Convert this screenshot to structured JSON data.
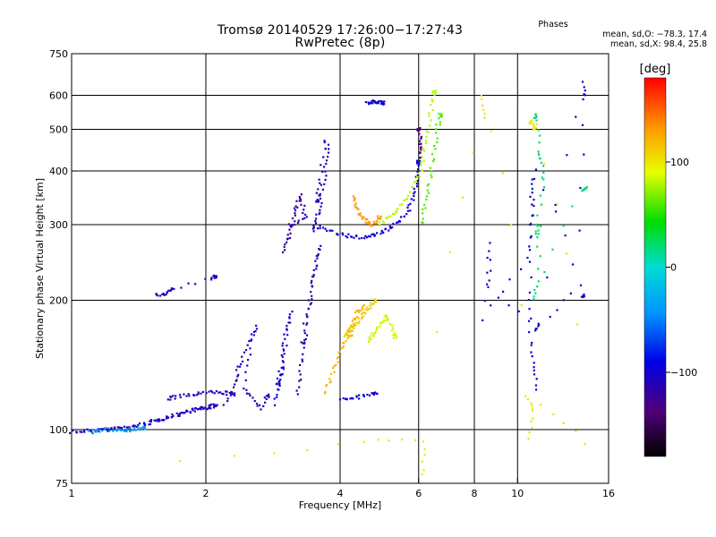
{
  "header": {
    "title": "Tromsø 20140529 17:26:00−17:27:43",
    "subtitle": "RwPretec (8p)"
  },
  "stats": {
    "heading": "Phases",
    "o_line": "mean, sd,O: −78.3, 17.4",
    "x_line": "mean, sd,X:  98.4, 25.8"
  },
  "chart_data": {
    "type": "scatter",
    "title": "Tromsø 20140529 17:26:00−17:27:43",
    "subtitle": "RwPretec (8p)",
    "xlabel": "Frequency [MHz]",
    "ylabel": "Stationary phase Virtual Height [km]",
    "x_scale": "log",
    "y_scale": "log",
    "xlim": [
      1,
      16
    ],
    "ylim": [
      75,
      750
    ],
    "x_ticks": [
      1,
      2,
      4,
      6,
      8,
      10,
      16
    ],
    "x_tick_labels": [
      "1",
      "2",
      "4",
      "6",
      "8",
      "10",
      "16"
    ],
    "x_grid": [
      2,
      4,
      6,
      8,
      10
    ],
    "y_ticks": [
      75,
      100,
      200,
      300,
      400,
      500,
      600,
      750
    ],
    "y_tick_labels": [
      "75",
      "100",
      "200",
      "300",
      "400",
      "500",
      "600",
      "750"
    ],
    "y_grid": [
      100,
      200,
      300,
      400,
      500,
      600
    ],
    "grid": true,
    "colorbar": {
      "label": "[deg]",
      "range": [
        -180,
        180
      ],
      "ticks": [
        100,
        0,
        -100
      ],
      "tick_labels": [
        "100",
        "0",
        "−100"
      ]
    },
    "series": [
      {
        "phase": -105,
        "points": [
          [
            1.0,
            99
          ],
          [
            1.05,
            99
          ],
          [
            1.1,
            99.5
          ],
          [
            1.15,
            100
          ],
          [
            1.2,
            100
          ],
          [
            1.25,
            100.5
          ],
          [
            1.3,
            101
          ],
          [
            1.35,
            101.5
          ],
          [
            1.4,
            102
          ],
          [
            1.45,
            103
          ],
          [
            1.5,
            104
          ],
          [
            1.55,
            105
          ],
          [
            1.6,
            106
          ],
          [
            1.65,
            107
          ],
          [
            1.7,
            108
          ],
          [
            1.75,
            109
          ],
          [
            1.8,
            110
          ],
          [
            1.85,
            111
          ],
          [
            1.9,
            111.5
          ],
          [
            1.95,
            112
          ],
          [
            2.0,
            112.5
          ],
          [
            2.05,
            113
          ],
          [
            2.1,
            114
          ]
        ]
      },
      {
        "phase": -40,
        "points": [
          [
            1.1,
            99
          ],
          [
            1.15,
            99
          ],
          [
            1.2,
            100
          ],
          [
            1.25,
            100
          ],
          [
            1.3,
            100
          ],
          [
            1.35,
            100
          ],
          [
            1.4,
            100.5
          ],
          [
            1.45,
            101
          ]
        ]
      },
      {
        "phase": -110,
        "points": [
          [
            1.65,
            118
          ],
          [
            1.7,
            119
          ],
          [
            1.8,
            120
          ],
          [
            1.9,
            121
          ],
          [
            2.0,
            122
          ],
          [
            2.1,
            122
          ],
          [
            2.2,
            122
          ],
          [
            2.3,
            121
          ]
        ]
      },
      {
        "phase": -105,
        "points": [
          [
            1.55,
            205
          ],
          [
            1.6,
            207
          ],
          [
            1.65,
            210
          ],
          [
            1.7,
            212
          ],
          [
            2.05,
            225
          ],
          [
            2.1,
            227
          ]
        ]
      },
      {
        "phase": -110,
        "points": [
          [
            2.2,
            115
          ],
          [
            2.3,
            125
          ],
          [
            2.35,
            135
          ],
          [
            2.4,
            145
          ],
          [
            2.5,
            160
          ],
          [
            2.6,
            175
          ],
          [
            2.5,
            150
          ],
          [
            2.45,
            125
          ],
          [
            2.55,
            118
          ],
          [
            2.65,
            112
          ],
          [
            2.75,
            120
          ]
        ]
      },
      {
        "phase": -100,
        "points": [
          [
            2.85,
            115
          ],
          [
            2.9,
            125
          ],
          [
            2.95,
            135
          ],
          [
            3.0,
            150
          ],
          [
            3.05,
            170
          ],
          [
            3.1,
            190
          ],
          [
            3.0,
            160
          ],
          [
            2.95,
            140
          ],
          [
            2.9,
            128
          ]
        ]
      },
      {
        "phase": -115,
        "points": [
          [
            3.2,
            120
          ],
          [
            3.25,
            135
          ],
          [
            3.3,
            150
          ],
          [
            3.35,
            170
          ],
          [
            3.4,
            190
          ],
          [
            3.45,
            210
          ],
          [
            3.5,
            230
          ],
          [
            3.55,
            250
          ],
          [
            3.6,
            270
          ],
          [
            3.4,
            200
          ],
          [
            3.3,
            160
          ]
        ]
      },
      {
        "phase": -120,
        "points": [
          [
            3.0,
            260
          ],
          [
            3.05,
            275
          ],
          [
            3.1,
            290
          ],
          [
            3.15,
            310
          ],
          [
            3.2,
            330
          ],
          [
            3.25,
            350
          ],
          [
            3.3,
            330
          ],
          [
            3.35,
            310
          ],
          [
            3.1,
            300
          ]
        ]
      },
      {
        "phase": -105,
        "points": [
          [
            3.5,
            290
          ],
          [
            3.55,
            310
          ],
          [
            3.6,
            330
          ],
          [
            3.65,
            360
          ],
          [
            3.7,
            400
          ],
          [
            3.75,
            440
          ],
          [
            3.72,
            470
          ],
          [
            3.6,
            380
          ],
          [
            3.55,
            340
          ]
        ]
      },
      {
        "phase": -100,
        "points": [
          [
            3.5,
            298
          ],
          [
            3.7,
            292
          ],
          [
            3.9,
            287
          ],
          [
            4.1,
            283
          ],
          [
            4.3,
            281
          ],
          [
            4.5,
            281
          ],
          [
            4.7,
            283
          ],
          [
            4.9,
            287
          ],
          [
            5.1,
            292
          ],
          [
            5.3,
            300
          ],
          [
            5.5,
            310
          ],
          [
            5.7,
            325
          ],
          [
            5.8,
            345
          ],
          [
            5.9,
            370
          ],
          [
            6.0,
            400
          ],
          [
            6.0,
            420
          ]
        ]
      },
      {
        "phase": -140,
        "points": [
          [
            6.0,
            430
          ],
          [
            6.02,
            450
          ],
          [
            6.05,
            470
          ],
          [
            6.0,
            500
          ]
        ]
      },
      {
        "phase": 130,
        "points": [
          [
            4.3,
            350
          ],
          [
            4.35,
            335
          ],
          [
            4.4,
            320
          ],
          [
            4.5,
            310
          ],
          [
            4.6,
            305
          ],
          [
            4.7,
            300
          ],
          [
            4.8,
            305
          ],
          [
            4.9,
            312
          ]
        ]
      },
      {
        "phase": 80,
        "points": [
          [
            4.9,
            300
          ],
          [
            5.1,
            310
          ],
          [
            5.3,
            320
          ],
          [
            5.5,
            335
          ],
          [
            5.7,
            355
          ],
          [
            5.9,
            380
          ],
          [
            6.1,
            410
          ],
          [
            6.2,
            450
          ],
          [
            6.3,
            500
          ],
          [
            6.4,
            560
          ],
          [
            6.5,
            610
          ]
        ]
      },
      {
        "phase": 60,
        "points": [
          [
            6.1,
            300
          ],
          [
            6.2,
            330
          ],
          [
            6.3,
            360
          ],
          [
            6.4,
            400
          ],
          [
            6.5,
            450
          ],
          [
            6.6,
            500
          ],
          [
            6.7,
            540
          ]
        ]
      },
      {
        "phase": 120,
        "points": [
          [
            3.7,
            122
          ],
          [
            3.8,
            130
          ],
          [
            3.9,
            140
          ],
          [
            4.0,
            150
          ],
          [
            4.1,
            160
          ],
          [
            4.2,
            170
          ],
          [
            4.3,
            180
          ],
          [
            4.4,
            190
          ],
          [
            4.5,
            195
          ],
          [
            4.3,
            175
          ],
          [
            4.2,
            165
          ]
        ]
      },
      {
        "phase": 110,
        "points": [
          [
            4.1,
            165
          ],
          [
            4.2,
            170
          ],
          [
            4.3,
            175
          ],
          [
            4.4,
            180
          ],
          [
            4.5,
            185
          ],
          [
            4.6,
            190
          ],
          [
            4.7,
            195
          ],
          [
            4.8,
            200
          ]
        ]
      },
      {
        "phase": 85,
        "points": [
          [
            4.6,
            160
          ],
          [
            4.7,
            165
          ],
          [
            4.8,
            170
          ],
          [
            4.9,
            175
          ],
          [
            5.0,
            180
          ],
          [
            5.1,
            185
          ],
          [
            5.2,
            175
          ],
          [
            5.3,
            165
          ]
        ]
      },
      {
        "phase": -100,
        "points": [
          [
            4.0,
            118
          ],
          [
            4.2,
            118
          ],
          [
            4.4,
            119
          ],
          [
            4.6,
            120
          ],
          [
            4.8,
            122
          ]
        ]
      },
      {
        "phase": -95,
        "points": [
          [
            4.6,
            578
          ],
          [
            4.7,
            580
          ],
          [
            4.8,
            580
          ],
          [
            4.9,
            578
          ],
          [
            5.0,
            576
          ]
        ]
      },
      {
        "phase": 100,
        "points": [
          [
            1.75,
            85
          ],
          [
            4.5,
            94
          ],
          [
            6.2,
            94
          ],
          [
            6.1,
            78
          ],
          [
            8.5,
            530
          ],
          [
            8.3,
            600
          ],
          [
            10.6,
            95
          ],
          [
            10.8,
            110
          ],
          [
            10.5,
            120
          ],
          [
            14.2,
            93
          ],
          [
            10.8,
            500
          ],
          [
            11.0,
            510
          ],
          [
            10.7,
            520
          ]
        ]
      },
      {
        "phase": -100,
        "points": [
          [
            10.7,
            380
          ],
          [
            10.8,
            300
          ],
          [
            10.6,
            210
          ],
          [
            10.7,
            160
          ],
          [
            10.9,
            140
          ],
          [
            11.0,
            125
          ],
          [
            14.0,
            640
          ],
          [
            14.1,
            585
          ],
          [
            13.8,
            215
          ],
          [
            11.2,
            175
          ],
          [
            11.0,
            170
          ],
          [
            8.6,
            213
          ],
          [
            8.7,
            270
          ],
          [
            8.3,
            180
          ],
          [
            10.6,
            250
          ],
          [
            10.8,
            330
          ],
          [
            10.9,
            400
          ],
          [
            14.0,
            205
          ]
        ]
      },
      {
        "phase": 20,
        "points": [
          [
            10.9,
            535
          ],
          [
            11.0,
            540
          ],
          [
            11.2,
            445
          ],
          [
            11.3,
            420
          ],
          [
            11.4,
            370
          ],
          [
            11.0,
            280
          ],
          [
            11.2,
            300
          ],
          [
            11.1,
            220
          ],
          [
            10.8,
            200
          ],
          [
            14.0,
            360
          ],
          [
            14.2,
            365
          ]
        ]
      }
    ]
  }
}
